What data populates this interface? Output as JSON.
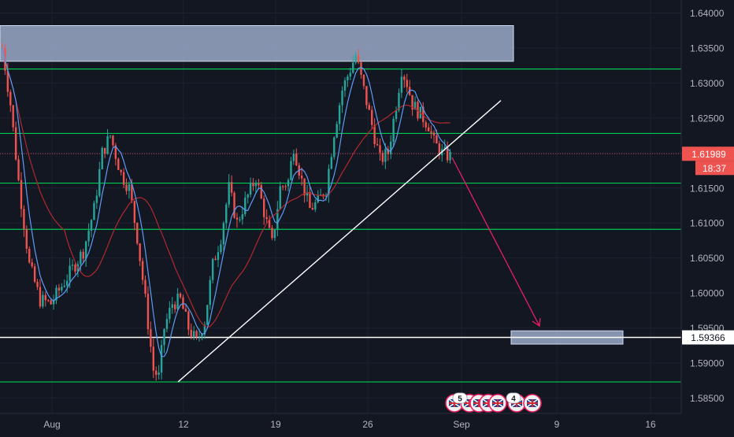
{
  "chart_data": {
    "type": "candlestick",
    "price_axis": {
      "ticks": [
        "1.64000",
        "1.63500",
        "1.63000",
        "1.62500",
        "1.62000",
        "1.61500",
        "1.61000",
        "1.60500",
        "1.60000",
        "1.59500",
        "1.59000",
        "1.58500"
      ],
      "range": [
        1.5825,
        1.6425
      ]
    },
    "time_axis": {
      "ticks": [
        "Aug",
        "12",
        "19",
        "26",
        "Sep",
        "9",
        "16"
      ]
    },
    "current_price": {
      "label": "1.61989",
      "countdown": "18:37",
      "color": "#ef5350"
    },
    "target_level": {
      "label": "1.59366",
      "color": "#ffffff"
    },
    "horizontal_levels": {
      "color": "#00c853",
      "prices": [
        1.632,
        1.6228,
        1.6157,
        1.6091,
        1.5873
      ]
    },
    "zones": [
      {
        "name": "supply-zone",
        "price_top": 1.6382,
        "price_bottom": 1.6331,
        "color": "#b2c4e6"
      },
      {
        "name": "target-zone",
        "price_top": 1.5946,
        "price_bottom": 1.5927,
        "color": "#b2c4e6"
      }
    ],
    "trendline": {
      "from": {
        "bar": 0,
        "price": 1.5873
      },
      "to": {
        "bar": 0,
        "price": 1.6275
      },
      "color": "#ffffff"
    },
    "projection_arrow": {
      "color": "#e91e63"
    },
    "event_flags": [
      "5",
      "4"
    ],
    "colors": {
      "bull": "#26a69a",
      "bear": "#ef5350",
      "fast_ma": "#5b9cf6",
      "slow_ma": "#b2282e",
      "grid": "#1e2230",
      "text": "#b2b5be",
      "background": "#131722"
    }
  }
}
